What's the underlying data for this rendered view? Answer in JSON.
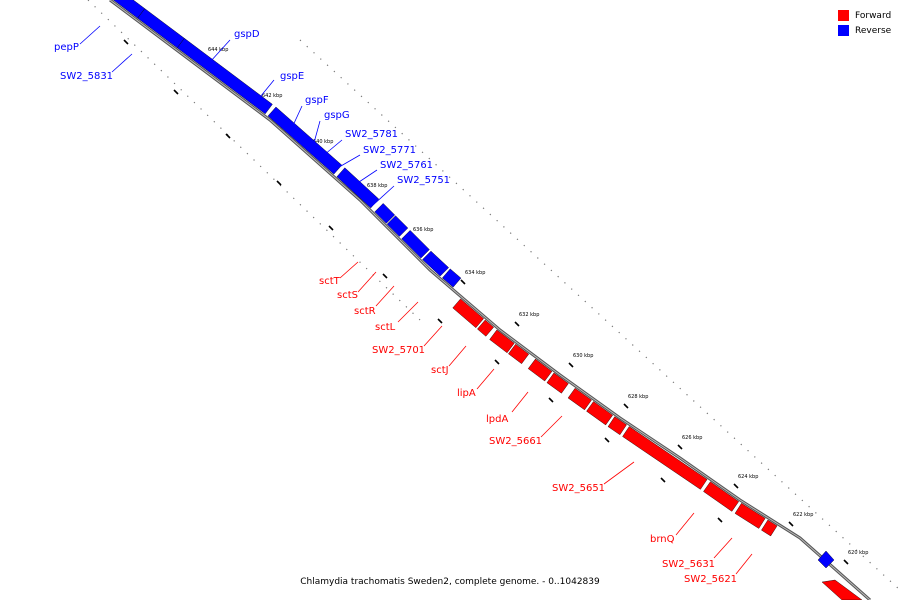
{
  "legend": {
    "forward_label": "Forward",
    "reverse_label": "Reverse",
    "forward_color": "#ff0000",
    "reverse_color": "#0000ff"
  },
  "caption": "Chlamydia trachomatis Sweden2, complete genome. - 0..1042839",
  "tick_labels": [
    "644 kbp",
    "642 kbp",
    "640 kbp",
    "638 kbp",
    "636 kbp",
    "634 kbp",
    "632 kbp",
    "630 kbp",
    "628 kbp",
    "626 kbp",
    "624 kbp",
    "622 kbp",
    "620 kbp"
  ],
  "genes": [
    {
      "name": "pepP",
      "strand": "reverse"
    },
    {
      "name": "SW2_5831",
      "strand": "reverse"
    },
    {
      "name": "gspD",
      "strand": "reverse"
    },
    {
      "name": "gspE",
      "strand": "reverse"
    },
    {
      "name": "gspF",
      "strand": "reverse"
    },
    {
      "name": "gspG",
      "strand": "reverse"
    },
    {
      "name": "SW2_5781",
      "strand": "reverse"
    },
    {
      "name": "SW2_5771",
      "strand": "reverse"
    },
    {
      "name": "SW2_5761",
      "strand": "reverse"
    },
    {
      "name": "SW2_5751",
      "strand": "reverse"
    },
    {
      "name": "sctT",
      "strand": "forward"
    },
    {
      "name": "sctS",
      "strand": "forward"
    },
    {
      "name": "sctR",
      "strand": "forward"
    },
    {
      "name": "sctL",
      "strand": "forward"
    },
    {
      "name": "SW2_5701",
      "strand": "forward"
    },
    {
      "name": "sctJ",
      "strand": "forward"
    },
    {
      "name": "lipA",
      "strand": "forward"
    },
    {
      "name": "lpdA",
      "strand": "forward"
    },
    {
      "name": "SW2_5661",
      "strand": "forward"
    },
    {
      "name": "SW2_5651",
      "strand": "forward"
    },
    {
      "name": "brnQ",
      "strand": "forward"
    },
    {
      "name": "SW2_5631",
      "strand": "forward"
    },
    {
      "name": "SW2_5621",
      "strand": "forward"
    }
  ]
}
